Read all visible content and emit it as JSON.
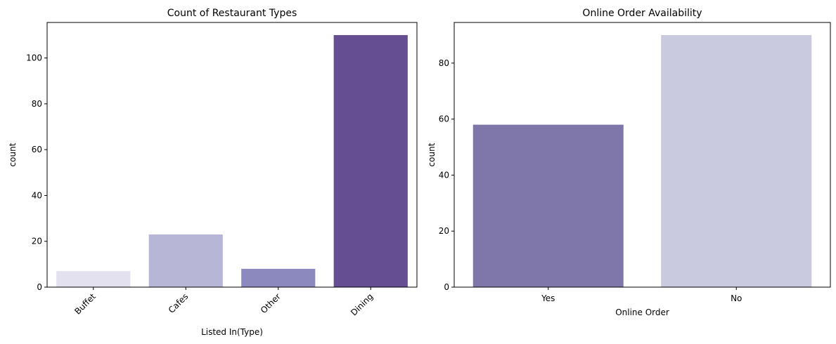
{
  "chart_data": [
    {
      "type": "bar",
      "title": "Count of Restaurant Types",
      "xlabel": "Listed In(Type)",
      "ylabel": "count",
      "categories": [
        "Buffet",
        "Cafes",
        "Other",
        "Dining"
      ],
      "values": [
        7,
        23,
        8,
        110
      ],
      "colors": [
        "#e3e1ef",
        "#b7b6d7",
        "#8b89bd",
        "#654e91"
      ],
      "ylim": [
        0,
        115.5
      ],
      "yticks": [
        0,
        20,
        40,
        60,
        80,
        100
      ],
      "xtick_rotation": 45,
      "grid": false,
      "legend": "none"
    },
    {
      "type": "bar",
      "title": "Online Order Availability",
      "xlabel": "Online Order",
      "ylabel": "count",
      "categories": [
        "Yes",
        "No"
      ],
      "values": [
        58,
        90
      ],
      "colors": [
        "#7f76aa",
        "#c9c9df"
      ],
      "ylim": [
        0,
        94.5
      ],
      "yticks": [
        0,
        20,
        40,
        60,
        80
      ],
      "xtick_rotation": 0,
      "grid": false,
      "legend": "none"
    }
  ]
}
